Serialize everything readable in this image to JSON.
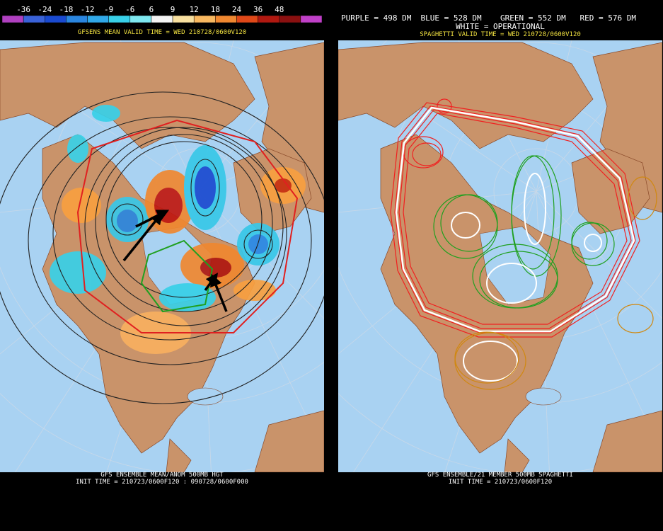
{
  "left_panel": {
    "colorbar": {
      "labels": [
        -36,
        -24,
        -18,
        -12,
        -9,
        -6,
        6,
        9,
        12,
        18,
        24,
        36,
        48
      ],
      "colors": [
        "#b040c0",
        "#3a62d8",
        "#1a4ad0",
        "#2a86e0",
        "#30a8e8",
        "#38d0e8",
        "#7ee8f0",
        "#f4f4f4",
        "#f8e0a0",
        "#f8b860",
        "#f08830",
        "#e04818",
        "#b01810",
        "#8a1010",
        "#c040c8"
      ]
    },
    "title": "GFSENS MEAN VALID TIME = WED 210728/0600V120",
    "footer": [
      "GFS ENSEMBLE MEAN/ANOM 500MB HGT",
      "INIT TIME = 210723/0600F120 : 090728/0600F000"
    ]
  },
  "right_panel": {
    "legend": [
      {
        "label": "PURPLE = 498 DM",
        "color": "#c040e0"
      },
      {
        "label": "BLUE = 528 DM",
        "color": "#2020d0"
      },
      {
        "label": "GREEN = 552 DM",
        "color": "#20a020"
      },
      {
        "label": "RED = 576 DM",
        "color": "#f02020"
      }
    ],
    "operational": "WHITE = OPERATIONAL",
    "title": "SPAGHETTI VALID TIME = WED 210728/0600V120",
    "footer": [
      "GFS ENSEMBLE/21 MEMBER 500MB SPAGHETTI",
      "INIT TIME = 210723/0600F120"
    ]
  }
}
